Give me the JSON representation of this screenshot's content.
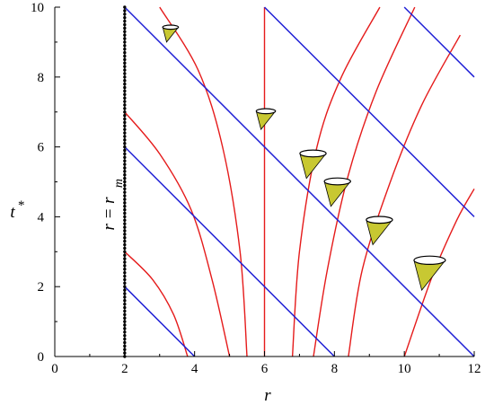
{
  "chart_data": {
    "type": "line",
    "title": "",
    "xlabel": "r",
    "ylabel": "t",
    "ylabel_superscript": "*",
    "xlim": [
      0,
      12
    ],
    "ylim": [
      0,
      10
    ],
    "x_ticks": [
      "0",
      "2",
      "4",
      "6",
      "8",
      "10",
      "12"
    ],
    "y_ticks": [
      "0",
      "2",
      "4",
      "6",
      "8",
      "10"
    ],
    "grid": false,
    "colors": {
      "blue": "#1f1fd6",
      "red": "#e51b1b",
      "cone_fill": "#c8c832",
      "axis": "#000000"
    },
    "boundary": {
      "label_main": "r = r",
      "label_sub": "m",
      "x": 2,
      "style": "dotted-black"
    },
    "blue_lines": [
      {
        "x": [
          2,
          4
        ],
        "y": [
          2,
          0
        ]
      },
      {
        "x": [
          2,
          8
        ],
        "y": [
          6,
          0
        ]
      },
      {
        "x": [
          2,
          12
        ],
        "y": [
          10,
          0
        ]
      },
      {
        "x": [
          6,
          12
        ],
        "y": [
          10,
          4
        ]
      },
      {
        "x": [
          10,
          12
        ],
        "y": [
          10,
          8
        ]
      }
    ],
    "red_curves": [
      {
        "x": [
          2,
          2.8,
          3.4,
          3.8
        ],
        "y": [
          3,
          2.2,
          1.2,
          0
        ]
      },
      {
        "x": [
          2,
          3.0,
          3.9,
          4.5,
          5.0
        ],
        "y": [
          7,
          5.8,
          4.2,
          2.2,
          0
        ]
      },
      {
        "x": [
          3.0,
          4.1,
          4.8,
          5.3,
          5.5
        ],
        "y": [
          10,
          8.2,
          6.0,
          3.0,
          0
        ]
      },
      {
        "x": [
          6,
          6
        ],
        "y": [
          10,
          0
        ]
      },
      {
        "x": [
          6.8,
          7.0,
          7.5,
          8.2,
          9.3
        ],
        "y": [
          0,
          3.0,
          6.0,
          8.0,
          10
        ]
      },
      {
        "x": [
          7.4,
          7.8,
          8.4,
          9.2,
          10.3
        ],
        "y": [
          0,
          2.5,
          5.2,
          7.6,
          10
        ]
      },
      {
        "x": [
          8.4,
          8.8,
          9.6,
          10.5,
          11.6
        ],
        "y": [
          0,
          2.5,
          5.0,
          7.2,
          9.2
        ]
      },
      {
        "x": [
          10.0,
          10.8,
          11.5,
          12.0
        ],
        "y": [
          0,
          2.3,
          3.9,
          4.8
        ]
      }
    ],
    "light_cones": [
      {
        "x": 3.2,
        "y": 9.0,
        "w": 0.45
      },
      {
        "x": 5.9,
        "y": 6.5,
        "w": 0.55
      },
      {
        "x": 7.2,
        "y": 5.1,
        "w": 0.75
      },
      {
        "x": 7.9,
        "y": 4.3,
        "w": 0.75
      },
      {
        "x": 9.1,
        "y": 3.2,
        "w": 0.75
      },
      {
        "x": 10.5,
        "y": 1.9,
        "w": 0.9
      }
    ]
  }
}
